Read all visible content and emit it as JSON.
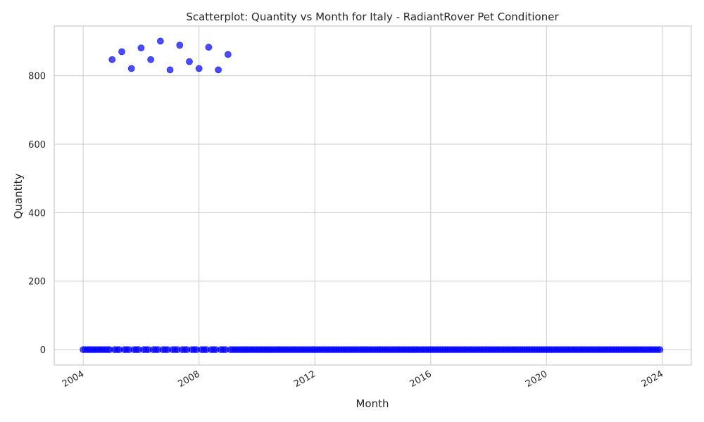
{
  "chart_data": {
    "type": "scatter",
    "title": "Scatterplot: Quantity vs Month for Italy - RadiantRover Pet Conditioner",
    "xlabel": "Month",
    "ylabel": "Quantity",
    "x_ticks": [
      "2004",
      "2008",
      "2012",
      "2016",
      "2020",
      "2024"
    ],
    "y_ticks": [
      0,
      200,
      400,
      600,
      800
    ],
    "xlim": [
      "2003-01-01",
      "2025-01-01"
    ],
    "ylim": [
      -45,
      945
    ],
    "grid": true,
    "marker_color": "#0000ff",
    "marker_opacity": 0.7,
    "series": [
      {
        "date_range": {
          "start": "2004-01",
          "end": "2023-12",
          "frequency": "monthly",
          "default_y": 0
        },
        "nonzero_points": [
          {
            "x": "2005-01",
            "y": 847
          },
          {
            "x": "2005-05",
            "y": 870
          },
          {
            "x": "2005-09",
            "y": 821
          },
          {
            "x": "2006-01",
            "y": 881
          },
          {
            "x": "2006-05",
            "y": 847
          },
          {
            "x": "2006-09",
            "y": 901
          },
          {
            "x": "2007-01",
            "y": 817
          },
          {
            "x": "2007-05",
            "y": 889
          },
          {
            "x": "2007-09",
            "y": 841
          },
          {
            "x": "2008-01",
            "y": 821
          },
          {
            "x": "2008-05",
            "y": 883
          },
          {
            "x": "2008-09",
            "y": 817
          },
          {
            "x": "2009-01",
            "y": 862
          }
        ]
      }
    ]
  }
}
